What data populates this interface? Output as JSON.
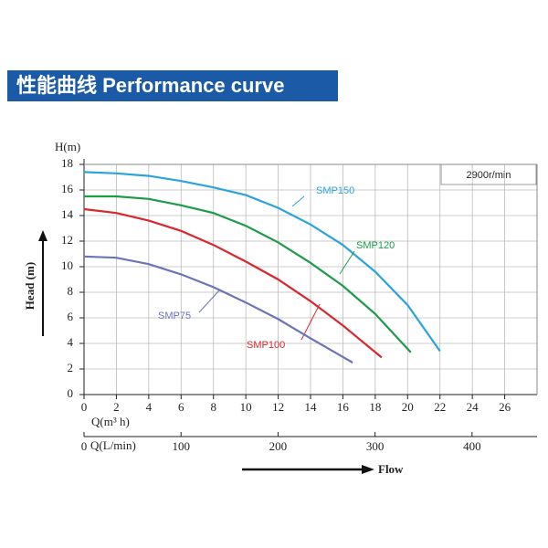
{
  "chart_data": {
    "type": "line",
    "title": "性能曲线 Performance curve",
    "y_unit_label": "H(m)",
    "ylabel": "Head (m)",
    "xlabel": "Q(m³ h)",
    "x2label": "Q(L/min)",
    "annotation": "2900r/min",
    "flow_label": "Flow",
    "xlim": [
      0,
      28
    ],
    "xticks": [
      0,
      2,
      4,
      6,
      8,
      10,
      12,
      14,
      16,
      18,
      20,
      22,
      24,
      26
    ],
    "x2lim": [
      0,
      467
    ],
    "x2ticks": [
      0,
      100,
      200,
      300,
      400
    ],
    "ylim": [
      0,
      18
    ],
    "yticks": [
      0,
      2,
      4,
      6,
      8,
      10,
      12,
      14,
      16,
      18
    ],
    "grid": true,
    "series": [
      {
        "name": "SMP150",
        "color": "#2ba3de",
        "x": [
          0,
          2,
          4,
          6,
          8,
          10,
          12,
          14,
          16,
          18,
          20,
          22
        ],
        "values": [
          17.4,
          17.3,
          17.1,
          16.7,
          16.2,
          15.6,
          14.6,
          13.3,
          11.7,
          9.6,
          7.0,
          3.4
        ]
      },
      {
        "name": "SMP120",
        "color": "#1d9a4a",
        "x": [
          0,
          2,
          4,
          6,
          8,
          10,
          12,
          14,
          16,
          18,
          20.2
        ],
        "values": [
          15.5,
          15.5,
          15.3,
          14.8,
          14.2,
          13.2,
          11.9,
          10.3,
          8.5,
          6.3,
          3.3
        ]
      },
      {
        "name": "SMP100",
        "color": "#d9272e",
        "x": [
          0,
          2,
          4,
          6,
          8,
          10,
          12,
          14,
          16,
          18.4
        ],
        "values": [
          14.5,
          14.2,
          13.6,
          12.8,
          11.7,
          10.4,
          9.0,
          7.3,
          5.4,
          2.9
        ]
      },
      {
        "name": "SMP75",
        "color": "#6b74b8",
        "x": [
          0,
          2,
          4,
          6,
          8,
          10,
          12,
          14,
          16.6
        ],
        "values": [
          10.8,
          10.7,
          10.2,
          9.4,
          8.4,
          7.2,
          5.9,
          4.4,
          2.5
        ]
      }
    ]
  }
}
